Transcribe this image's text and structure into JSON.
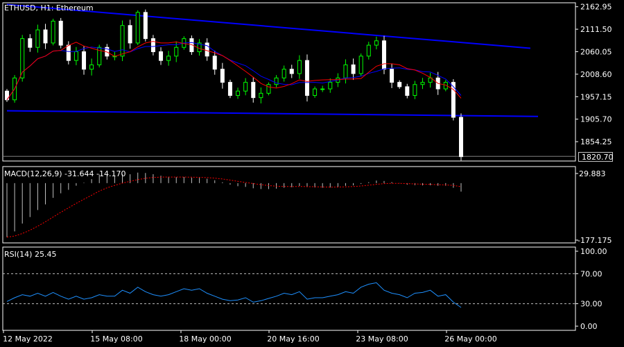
{
  "header": {
    "title": "ETHUSD, H1:  Ethereum"
  },
  "main": {
    "current_price": "1820.70"
  },
  "macd": {
    "title": "MACD(12,26,9) -31.644 -14.170",
    "ticks": [
      "29.883",
      "-177.175"
    ]
  },
  "rsi": {
    "title": "RSI(14) 25.45",
    "ticks": [
      "100.00",
      "70.00",
      "30.00",
      "0.00"
    ]
  },
  "colors": {
    "background": "#000000",
    "bull_candle": "#00ff00",
    "bear_candle": "#ffffff",
    "trendline": "#0000ff",
    "ma_fast": "#ff0000",
    "ma_slow": "#0000ff",
    "macd_signal": "#ff0000",
    "rsi_line": "#1e90ff"
  },
  "chart_data": [
    {
      "type": "candlestick",
      "symbol": "ETHUSD",
      "timeframe": "H1",
      "y_ticks": [
        "2162.95",
        "2111.50",
        "2060.05",
        "2008.60",
        "1957.15",
        "1905.70",
        "1854.25"
      ],
      "ylim": [
        1810,
        2172
      ],
      "x_ticks": [
        "12 May 2022",
        "15 May 08:00",
        "18 May 00:00",
        "20 May 16:00",
        "23 May 08:00",
        "26 May 00:00"
      ],
      "current_price": 1820.7,
      "closes": [
        1950,
        2000,
        2090,
        2070,
        2110,
        2080,
        2130,
        2075,
        2040,
        2060,
        2020,
        2030,
        2070,
        2050,
        2050,
        2120,
        2080,
        2150,
        2090,
        2060,
        2040,
        2050,
        2070,
        2090,
        2060,
        2080,
        2050,
        2020,
        1990,
        1960,
        1970,
        1990,
        1955,
        1965,
        1985,
        2000,
        2020,
        2010,
        2040,
        1960,
        1975,
        1975,
        1990,
        2000,
        2030,
        2010,
        2050,
        2075,
        2085,
        2020,
        1990,
        1980,
        1960,
        1985,
        1990,
        2000,
        1975,
        1990,
        1910,
        1820
      ],
      "trendlines": [
        {
          "points": [
            [
              0,
              2168
            ],
            [
              68,
              2068
            ]
          ]
        },
        {
          "points": [
            [
              0,
              1925
            ],
            [
              69,
              1912
            ]
          ]
        }
      ]
    },
    {
      "type": "line",
      "indicator": "MACD(12,26,9)",
      "main_value": -31.644,
      "signal_value": -14.17,
      "ylim": [
        -177.175,
        29.883
      ]
    },
    {
      "type": "line",
      "indicator": "RSI(14)",
      "last_value": 25.45,
      "levels": [
        70,
        30
      ],
      "ylim": [
        0,
        100
      ],
      "values": [
        33,
        38,
        42,
        40,
        44,
        40,
        45,
        40,
        36,
        40,
        36,
        38,
        42,
        40,
        40,
        48,
        44,
        52,
        46,
        42,
        40,
        42,
        46,
        50,
        48,
        50,
        44,
        40,
        36,
        34,
        35,
        38,
        32,
        34,
        37,
        40,
        44,
        42,
        46,
        36,
        38,
        38,
        40,
        42,
        46,
        44,
        52,
        56,
        58,
        48,
        44,
        42,
        38,
        44,
        45,
        48,
        40,
        42,
        32,
        25
      ]
    }
  ]
}
